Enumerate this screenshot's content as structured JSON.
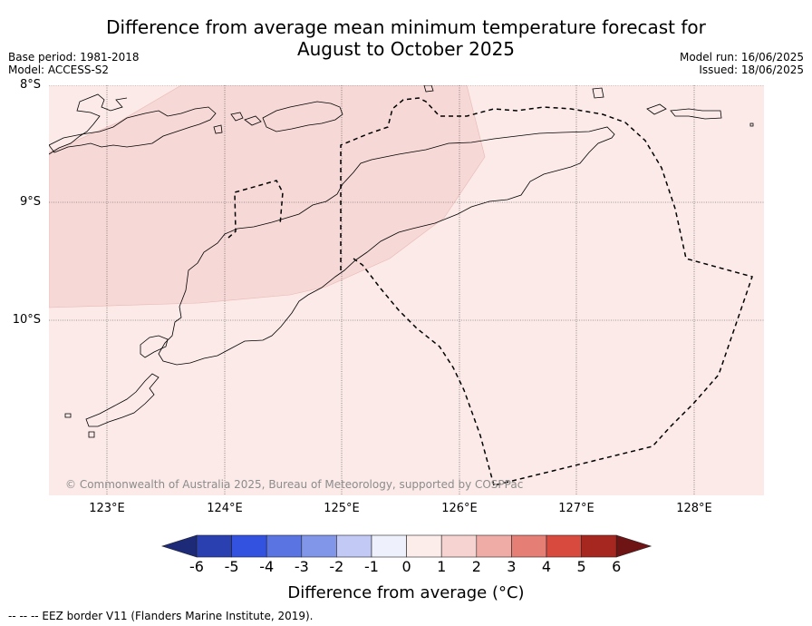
{
  "title_line1": "Difference from average mean minimum temperature forecast for",
  "title_line2": "August to October 2025",
  "base_period": "Base period: 1981-2018",
  "model": "Model: ACCESS-S2",
  "model_run": "Model run: 16/06/2025",
  "issued": "Issued: 18/06/2025",
  "lat_labels": [
    "8°S",
    "9°S",
    "10°S"
  ],
  "lon_labels": [
    "123°E",
    "124°E",
    "125°E",
    "126°E",
    "127°E",
    "128°E"
  ],
  "copyright": "© Commonwealth of Australia 2025, Bureau of Meteorology, supported by COSPPac",
  "colorbar": {
    "ticks": [
      "-6",
      "-5",
      "-4",
      "-3",
      "-2",
      "-1",
      "0",
      "1",
      "2",
      "3",
      "4",
      "5",
      "6"
    ],
    "colors": [
      "#1c2a78",
      "#2a3fb0",
      "#3352df",
      "#5a75e2",
      "#8196e8",
      "#c1c9f4",
      "#eef0fc",
      "#fcecea",
      "#f6d3d0",
      "#efaca6",
      "#e57e75",
      "#d94a3e",
      "#a6271f",
      "#6e1414"
    ],
    "label": "Difference from average (°C)"
  },
  "map_fills": {
    "light": "#fbeae8",
    "medium": "#f6d8d6"
  },
  "eez_legend": "--  --  -- EEZ border V11 (Flanders Marine Institute, 2019)."
}
